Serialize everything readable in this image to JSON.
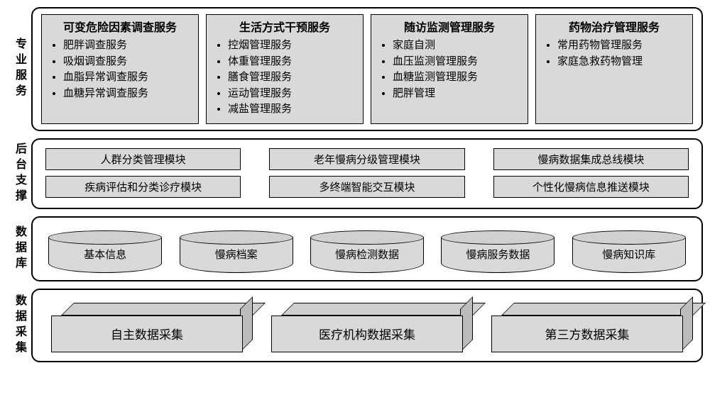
{
  "colors": {
    "panel_bg": "#d9d9d9",
    "border": "#000000",
    "page_bg": "#ffffff"
  },
  "typography": {
    "font_family": "SimSun",
    "title_fontsize_pt": 12,
    "body_fontsize_pt": 11
  },
  "sections": {
    "services": {
      "label": "专业服务",
      "panels": [
        {
          "title": "可变危险因素调查服务",
          "items": [
            "肥胖调查服务",
            "吸烟调查服务",
            "血脂异常调查服务",
            "血糖异常调查服务"
          ]
        },
        {
          "title": "生活方式干预服务",
          "items": [
            "控烟管理服务",
            "体重管理服务",
            "膳食管理服务",
            "运动管理服务",
            "减盐管理服务"
          ]
        },
        {
          "title": "随访监测管理服务",
          "items": [
            "家庭自测",
            "血压监测管理服务",
            "血糖监测管理服务",
            "肥胖管理"
          ]
        },
        {
          "title": "药物治疗管理服务",
          "items": [
            "常用药物管理服务",
            "家庭急救药物管理"
          ]
        }
      ]
    },
    "backend": {
      "label": "后台支撑",
      "modules": [
        "人群分类管理模块",
        "老年慢病分级管理模块",
        "慢病数据集成总线模块",
        "疾病评估和分类诊疗模块",
        "多终端智能交互模块",
        "个性化慢病信息推送模块"
      ]
    },
    "database": {
      "label": "数据库",
      "stores": [
        "基本信息",
        "慢病档案",
        "慢病检测数据",
        "慢病服务数据",
        "慢病知识库"
      ]
    },
    "collection": {
      "label": "数据采集",
      "sources": [
        "自主数据采集",
        "医疗机构数据采集",
        "第三方数据采集"
      ]
    }
  }
}
